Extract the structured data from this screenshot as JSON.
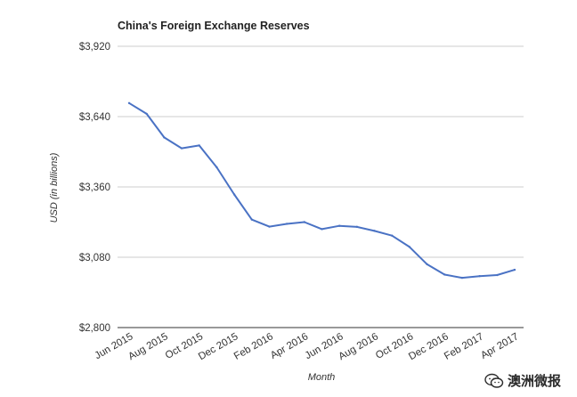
{
  "chart_data": {
    "type": "line",
    "title": "China's Foreign Exchange Reserves",
    "xlabel": "Month",
    "ylabel": "USD (in billions)",
    "ylim": [
      2800,
      3920
    ],
    "yticks": [
      2800,
      3080,
      3360,
      3640,
      3920
    ],
    "ytick_labels": [
      "$2,800",
      "$3,080",
      "$3,360",
      "$3,640",
      "$3,920"
    ],
    "grid": true,
    "legend": "none",
    "categories": [
      "Jun 2015",
      "Jul 2015",
      "Aug 2015",
      "Sep 2015",
      "Oct 2015",
      "Nov 2015",
      "Dec 2015",
      "Jan 2016",
      "Feb 2016",
      "Mar 2016",
      "Apr 2016",
      "May 2016",
      "Jun 2016",
      "Jul 2016",
      "Aug 2016",
      "Sep 2016",
      "Oct 2016",
      "Nov 2016",
      "Dec 2016",
      "Jan 2017",
      "Feb 2017",
      "Mar 2017",
      "Apr 2017"
    ],
    "xtick_labels": [
      "Jun 2015",
      "Aug 2015",
      "Oct 2015",
      "Dec 2015",
      "Feb 2016",
      "Apr 2016",
      "Jun 2016",
      "Aug 2016",
      "Oct 2016",
      "Dec 2016",
      "Feb 2017",
      "Apr 2017"
    ],
    "series": [
      {
        "color": "#4a72c4",
        "values": [
          3694,
          3651,
          3557,
          3514,
          3525,
          3438,
          3330,
          3230,
          3202,
          3213,
          3220,
          3192,
          3205,
          3201,
          3185,
          3166,
          3121,
          3052,
          3011,
          2998,
          3005,
          3009,
          3030
        ]
      }
    ]
  },
  "watermark": {
    "text": "澳洲微报",
    "icon": "wechat-icon"
  }
}
